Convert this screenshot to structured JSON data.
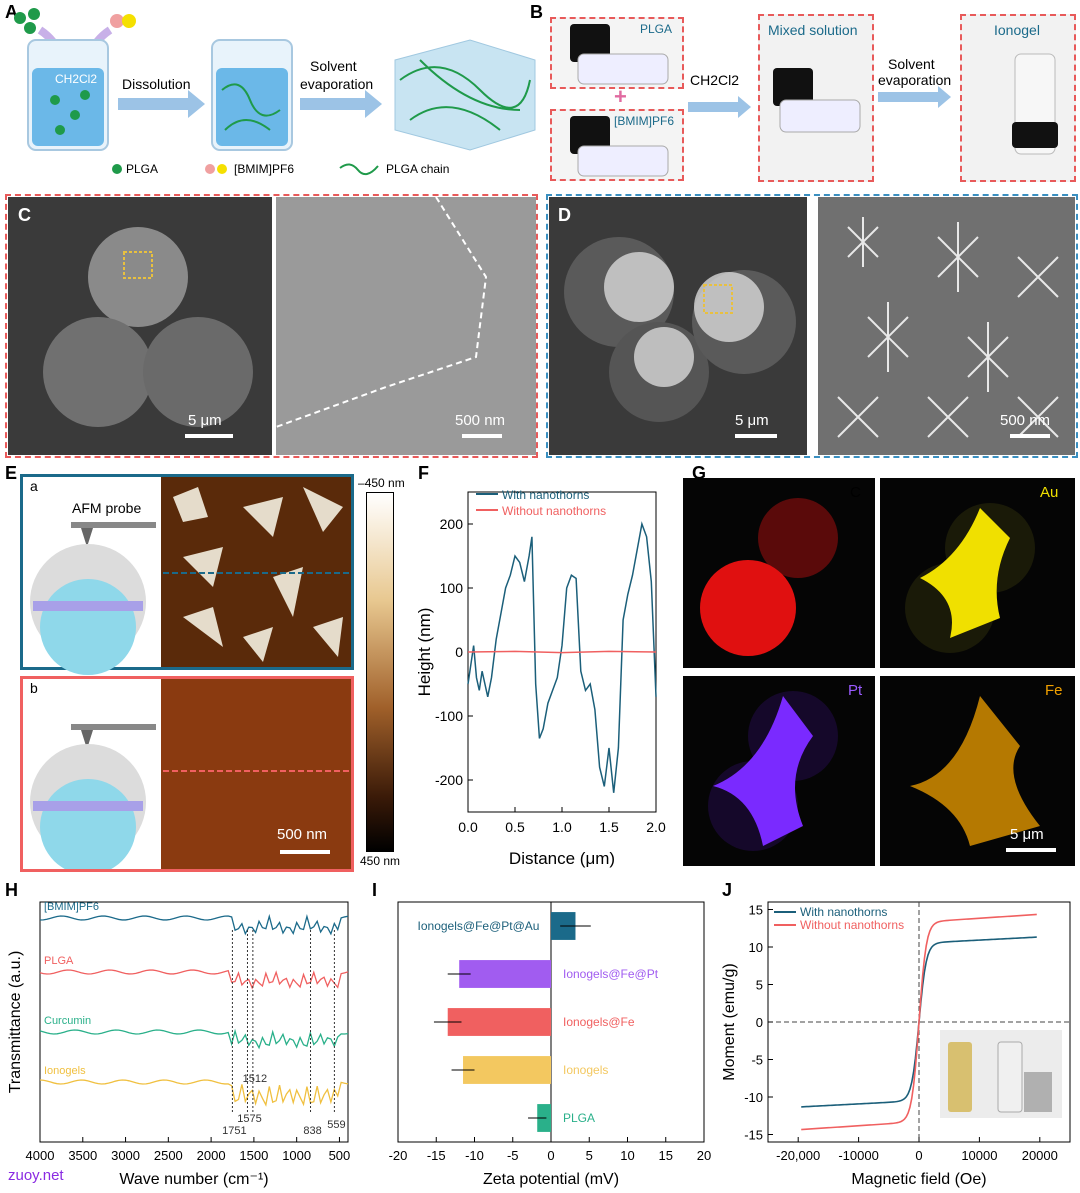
{
  "panels": {
    "A": {
      "label": "A",
      "solvent": "CH2Cl2",
      "step1": "Dissolution",
      "step2_line1": "Solvent",
      "step2_line2": "evaporation",
      "legend_plga": "PLGA",
      "legend_il": "[BMIM]PF6",
      "legend_chain": "PLGA chain"
    },
    "B": {
      "label": "B",
      "vial1": "PLGA",
      "vial2": "[BMIM]PF6",
      "arrow1": "CH2Cl2",
      "mixed": "Mixed solution",
      "arrow2_line1": "Solvent",
      "arrow2_line2": "evaporation",
      "ionogel": "Ionogel"
    },
    "C": {
      "label": "C",
      "scale1": "5 μm",
      "scale2": "500 nm"
    },
    "D": {
      "label": "D",
      "scale1": "5 μm",
      "scale2": "500 nm"
    },
    "E": {
      "label": "E",
      "a": "a",
      "b": "b",
      "probe": "AFM probe",
      "scale": "500 nm",
      "cbar_top": "450 nm",
      "cbar_top_sign": "–",
      "cbar_bottom": "450 nm"
    },
    "F": {
      "label": "F"
    },
    "G": {
      "label": "G",
      "C": "C",
      "Au": "Au",
      "Pt": "Pt",
      "Fe": "Fe",
      "scale": "5 μm",
      "colors": {
        "C": "#e01010",
        "Au": "#f0e000",
        "Pt": "#7a2aff",
        "Fe": "#f0a000"
      }
    },
    "H": {
      "label": "H"
    },
    "I": {
      "label": "I"
    },
    "J": {
      "label": "J"
    }
  },
  "watermark": "zuoy.net",
  "chart_data": [
    {
      "id": "F",
      "type": "line",
      "xlabel": "Distance (μm)",
      "ylabel": "Height (nm)",
      "xlim": [
        0,
        2.0
      ],
      "ylim": [
        -250,
        250
      ],
      "xticks": [
        "0.0",
        "0.5",
        "1.0",
        "1.5",
        "2.0"
      ],
      "yticks": [
        "200",
        "100",
        "0",
        "-100",
        "-200"
      ],
      "legend_placement": "top",
      "series": [
        {
          "name": "With nanothorns",
          "color": "#1b5f7a",
          "x": [
            0,
            0.03,
            0.06,
            0.09,
            0.12,
            0.15,
            0.18,
            0.21,
            0.25,
            0.3,
            0.35,
            0.4,
            0.45,
            0.5,
            0.55,
            0.6,
            0.65,
            0.68,
            0.72,
            0.76,
            0.8,
            0.85,
            0.9,
            0.95,
            1.0,
            1.05,
            1.1,
            1.15,
            1.2,
            1.25,
            1.3,
            1.35,
            1.4,
            1.45,
            1.5,
            1.55,
            1.6,
            1.65,
            1.7,
            1.75,
            1.8,
            1.85,
            1.9,
            1.95,
            2.0
          ],
          "y": [
            -50,
            -20,
            10,
            -40,
            -60,
            -30,
            -50,
            -70,
            -40,
            20,
            60,
            100,
            120,
            150,
            140,
            110,
            150,
            180,
            -50,
            -135,
            -120,
            -80,
            -60,
            -40,
            10,
            100,
            120,
            115,
            -30,
            -60,
            -50,
            -90,
            -180,
            -210,
            -150,
            -220,
            -150,
            50,
            90,
            120,
            160,
            200,
            180,
            110,
            -70
          ]
        },
        {
          "name": "Without nanothorns",
          "color": "#f06060",
          "x": [
            0,
            0.5,
            1.0,
            1.5,
            2.0
          ],
          "y": [
            0,
            1,
            -1,
            1,
            0
          ]
        }
      ]
    },
    {
      "id": "H",
      "type": "line",
      "xlabel": "Wave number (cm⁻¹)",
      "ylabel": "Transmittance (a.u.)",
      "xlim": [
        4000,
        400
      ],
      "xticks": [
        "4000",
        "3500",
        "3000",
        "2500",
        "2000",
        "1500",
        "1000",
        "500"
      ],
      "annotations": [
        "1751",
        "1575",
        "1512",
        "838",
        "559"
      ],
      "series": [
        {
          "name": "[BMIM]PF6",
          "color": "#1b6a8a"
        },
        {
          "name": "PLGA",
          "color": "#f06060"
        },
        {
          "name": "Curcumin",
          "color": "#2ab08a"
        },
        {
          "name": "Ionogels",
          "color": "#f0c040"
        }
      ]
    },
    {
      "id": "I",
      "type": "bar",
      "orientation": "horizontal",
      "xlabel": "Zeta potential (mV)",
      "xlim": [
        -20,
        20
      ],
      "xticks": [
        "-20",
        "-15",
        "-10",
        "-5",
        "0",
        "5",
        "10",
        "15",
        "20"
      ],
      "categories": [
        "Ionogels@Fe@Pt@Au",
        "Ionogels@Fe@Pt",
        "Ionogels@Fe",
        "Ionogels",
        "PLGA"
      ],
      "values": [
        3.2,
        -12,
        -13.5,
        -11.5,
        -1.8
      ],
      "errors": [
        2,
        1.5,
        1.8,
        1.5,
        1.2
      ],
      "colors": [
        "#1b6a8a",
        "#a15cf0",
        "#f06060",
        "#f3c860",
        "#2ab08a"
      ]
    },
    {
      "id": "J",
      "type": "line",
      "xlabel": "Magnetic field (Oe)",
      "ylabel": "Moment (emu/g)",
      "xlim": [
        -25000,
        25000
      ],
      "ylim": [
        -16,
        16
      ],
      "xticks": [
        "-20,000",
        "-10000",
        "0",
        "10000",
        "20000"
      ],
      "yticks": [
        "15",
        "10",
        "5",
        "0",
        "-5",
        "-10",
        "-15"
      ],
      "legend_placement": "top-left",
      "series": [
        {
          "name": "With nanothorns",
          "color": "#1b5f7a",
          "ms": 10.5
        },
        {
          "name": "Without nanothorns",
          "color": "#f06060",
          "ms": 13.3
        }
      ]
    }
  ]
}
